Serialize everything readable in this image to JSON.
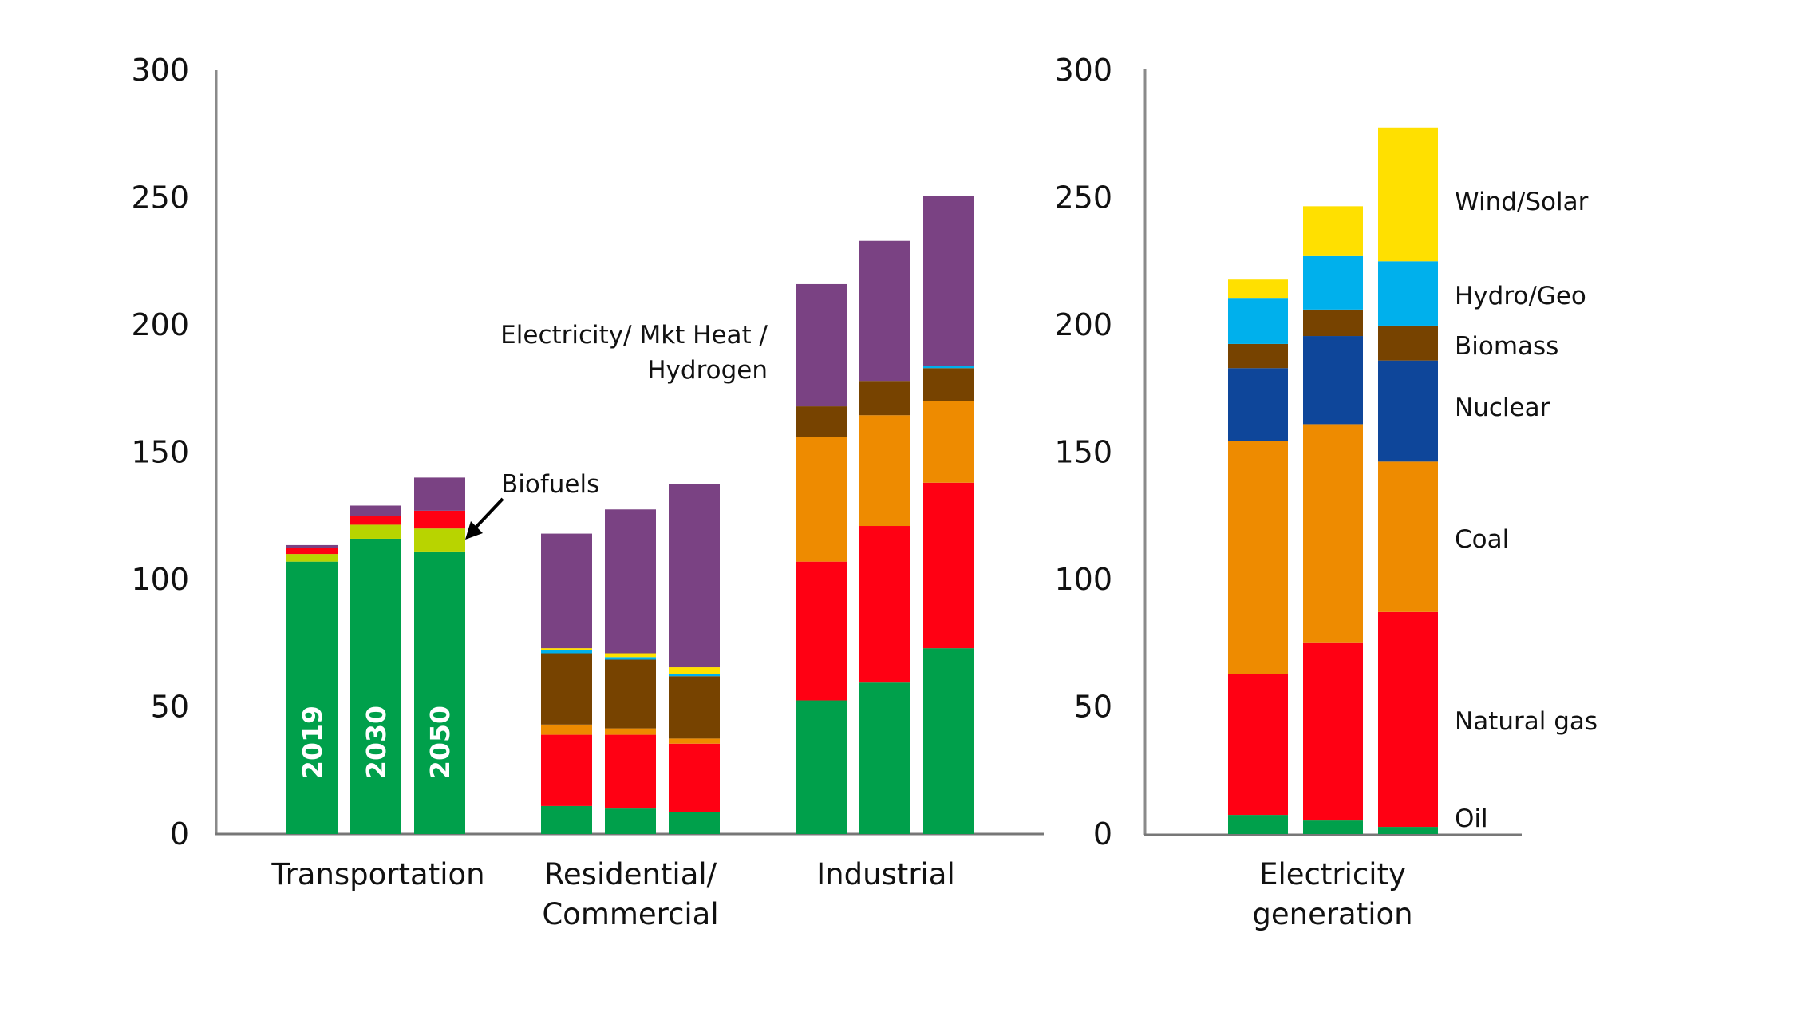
{
  "chart_data": [
    {
      "type": "bar",
      "stacked": true,
      "panel": "end-use sectors",
      "title": "",
      "xlabel": "",
      "ylabel": "",
      "ylim": [
        0,
        300
      ],
      "yticks": [
        "0",
        "50",
        "100",
        "150",
        "200",
        "250",
        "300"
      ],
      "grid": false,
      "bar_year_labels": [
        "2019",
        "2030",
        "2050"
      ],
      "series_colors": {
        "Oil": "#00A04B",
        "Biofuels": "#B8D400",
        "Natural gas": "#FF0013",
        "Coal": "#EE8B00",
        "Biomass": "#774300",
        "Hydro/Geo": "#00B0EC",
        "Wind/Solar": "#FFE000",
        "Electricity/ Mkt Heat / Hydrogen": "#7A4283"
      },
      "groups": [
        {
          "category": "Transportation",
          "bars": [
            {
              "year": "2019",
              "segments": [
                {
                  "series": "Oil",
                  "value": 107
                },
                {
                  "series": "Biofuels",
                  "value": 3
                },
                {
                  "series": "Natural gas",
                  "value": 2.5
                },
                {
                  "series": "Electricity/ Mkt Heat / Hydrogen",
                  "value": 1
                }
              ]
            },
            {
              "year": "2030",
              "segments": [
                {
                  "series": "Oil",
                  "value": 116
                },
                {
                  "series": "Biofuels",
                  "value": 5.5
                },
                {
                  "series": "Natural gas",
                  "value": 3.5
                },
                {
                  "series": "Electricity/ Mkt Heat / Hydrogen",
                  "value": 4
                }
              ]
            },
            {
              "year": "2050",
              "segments": [
                {
                  "series": "Oil",
                  "value": 111
                },
                {
                  "series": "Biofuels",
                  "value": 9
                },
                {
                  "series": "Natural gas",
                  "value": 7
                },
                {
                  "series": "Electricity/ Mkt Heat / Hydrogen",
                  "value": 13
                }
              ]
            }
          ]
        },
        {
          "category": "Residential/ Commercial",
          "bars": [
            {
              "year": "2019",
              "segments": [
                {
                  "series": "Oil",
                  "value": 11
                },
                {
                  "series": "Natural gas",
                  "value": 28
                },
                {
                  "series": "Coal",
                  "value": 4
                },
                {
                  "series": "Biomass",
                  "value": 28
                },
                {
                  "series": "Hydro/Geo",
                  "value": 1.2
                },
                {
                  "series": "Wind/Solar",
                  "value": 0.8
                },
                {
                  "series": "Electricity/ Mkt Heat / Hydrogen",
                  "value": 45
                }
              ]
            },
            {
              "year": "2030",
              "segments": [
                {
                  "series": "Oil",
                  "value": 10
                },
                {
                  "series": "Natural gas",
                  "value": 29
                },
                {
                  "series": "Coal",
                  "value": 2.5
                },
                {
                  "series": "Biomass",
                  "value": 27
                },
                {
                  "series": "Hydro/Geo",
                  "value": 1
                },
                {
                  "series": "Wind/Solar",
                  "value": 1.5
                },
                {
                  "series": "Electricity/ Mkt Heat / Hydrogen",
                  "value": 56.5
                }
              ]
            },
            {
              "year": "2050",
              "segments": [
                {
                  "series": "Oil",
                  "value": 8.5
                },
                {
                  "series": "Natural gas",
                  "value": 27
                },
                {
                  "series": "Coal",
                  "value": 2
                },
                {
                  "series": "Biomass",
                  "value": 24.5
                },
                {
                  "series": "Hydro/Geo",
                  "value": 1
                },
                {
                  "series": "Wind/Solar",
                  "value": 2.5
                },
                {
                  "series": "Electricity/ Mkt Heat / Hydrogen",
                  "value": 72
                }
              ]
            }
          ]
        },
        {
          "category": "Industrial",
          "bars": [
            {
              "year": "2019",
              "segments": [
                {
                  "series": "Oil",
                  "value": 52.5
                },
                {
                  "series": "Natural gas",
                  "value": 54.5
                },
                {
                  "series": "Coal",
                  "value": 49
                },
                {
                  "series": "Biomass",
                  "value": 12
                },
                {
                  "series": "Electricity/ Mkt Heat / Hydrogen",
                  "value": 48
                }
              ]
            },
            {
              "year": "2030",
              "segments": [
                {
                  "series": "Oil",
                  "value": 59.5
                },
                {
                  "series": "Natural gas",
                  "value": 61.5
                },
                {
                  "series": "Coal",
                  "value": 43.5
                },
                {
                  "series": "Biomass",
                  "value": 13.5
                },
                {
                  "series": "Electricity/ Mkt Heat / Hydrogen",
                  "value": 55
                }
              ]
            },
            {
              "year": "2050",
              "segments": [
                {
                  "series": "Oil",
                  "value": 73
                },
                {
                  "series": "Natural gas",
                  "value": 65
                },
                {
                  "series": "Coal",
                  "value": 32
                },
                {
                  "series": "Biomass",
                  "value": 13
                },
                {
                  "series": "Hydro/Geo",
                  "value": 1
                },
                {
                  "series": "Electricity/ Mkt Heat / Hydrogen",
                  "value": 66.5
                }
              ]
            }
          ]
        }
      ],
      "annotations": [
        {
          "text": "Biofuels",
          "points_to": "Transportation 2050 Biofuels segment",
          "arrow": true
        },
        {
          "text_lines": [
            "Electricity/ Mkt Heat /",
            "Hydrogen"
          ],
          "refers_to": "purple segments"
        }
      ]
    },
    {
      "type": "bar",
      "stacked": true,
      "panel": "electricity generation",
      "title": "",
      "xlabel": "",
      "ylabel": "",
      "ylim": [
        0,
        300
      ],
      "yticks": [
        "0",
        "50",
        "100",
        "150",
        "200",
        "250",
        "300"
      ],
      "grid": false,
      "legend_placement": "right",
      "category": "Electricity generation",
      "series": [
        {
          "name": "Oil",
          "color": "#00A04B",
          "values": [
            7.5,
            5.3,
            2.8
          ]
        },
        {
          "name": "Natural gas",
          "color": "#FF0013",
          "values": [
            55.3,
            69.7,
            84.4
          ]
        },
        {
          "name": "Coal",
          "color": "#EE8B00",
          "values": [
            91.6,
            86,
            59.1
          ]
        },
        {
          "name": "Nuclear",
          "color": "#0E469A",
          "values": [
            28.6,
            34.6,
            39.7
          ]
        },
        {
          "name": "Biomass",
          "color": "#774300",
          "values": [
            9.5,
            10.4,
            13.7
          ]
        },
        {
          "name": "Hydro/Geo",
          "color": "#00B0EC",
          "values": [
            17.8,
            21,
            25.3
          ]
        },
        {
          "name": "Wind/Solar",
          "color": "#FFE000",
          "values": [
            7.5,
            19.6,
            52.5
          ]
        }
      ],
      "bar_years": [
        "2019",
        "2030",
        "2050"
      ]
    }
  ],
  "labels": {
    "category_lines": [
      [
        "Transportation"
      ],
      [
        "Residential/",
        "Commercial"
      ],
      [
        "Industrial"
      ],
      [
        "Electricity",
        "generation"
      ]
    ],
    "biofuels": "Biofuels",
    "electricity_annotation": [
      "Electricity/ Mkt Heat /",
      "Hydrogen"
    ],
    "legend": [
      "Wind/Solar",
      "Hydro/Geo",
      "Biomass",
      "Nuclear",
      "Coal",
      "Natural gas",
      "Oil"
    ]
  }
}
